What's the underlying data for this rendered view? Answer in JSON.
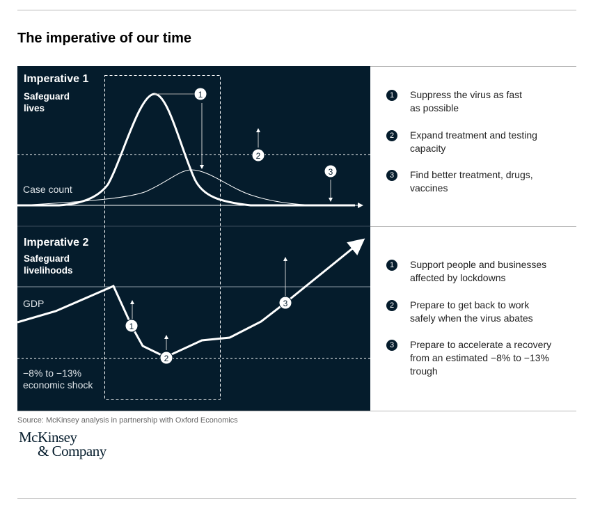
{
  "title": "The imperative of our time",
  "imperative1": {
    "heading": "Imperative 1",
    "subheading_line1": "Safeguard",
    "subheading_line2": "lives",
    "axis_label": "Case count",
    "markers": [
      "1",
      "2",
      "3"
    ],
    "actions": [
      {
        "num": "1",
        "line1": "Suppress the virus as fast",
        "line2": "as possible"
      },
      {
        "num": "2",
        "line1": "Expand treatment and testing",
        "line2": "capacity"
      },
      {
        "num": "3",
        "line1": "Find better treatment, drugs,",
        "line2": "vaccines"
      }
    ]
  },
  "imperative2": {
    "heading": "Imperative 2",
    "subheading_line1": "Safeguard",
    "subheading_line2": "livelihoods",
    "axis_label": "GDP",
    "shock_line1": "−8% to −13%",
    "shock_line2": "economic shock",
    "markers": [
      "1",
      "2",
      "3"
    ],
    "actions": [
      {
        "num": "1",
        "line1": "Support people and businesses",
        "line2": "affected by lockdowns"
      },
      {
        "num": "2",
        "line1": "Prepare to get back to work",
        "line2": "safely when the virus abates"
      },
      {
        "num": "3",
        "line1": "Prepare to accelerate a recovery",
        "line2": "from an estimated −8% to −13%",
        "line3": "trough"
      }
    ]
  },
  "source": "Source: McKinsey analysis in partnership with Oxford Economics",
  "logo": {
    "line1": "McKinsey",
    "line2": "& Company"
  },
  "colors": {
    "panel": "#051c2c",
    "line": "#ffffff"
  }
}
